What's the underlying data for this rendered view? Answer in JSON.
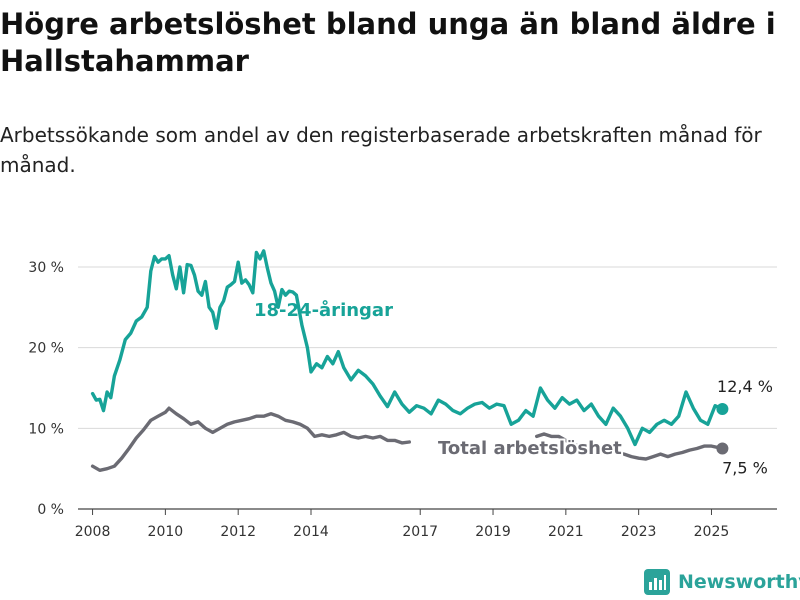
{
  "title": "Högre arbetslöshet bland unga än bland äldre i Hallstahammar",
  "subtitle": "Arbetssökande som andel av den registerbaserade arbetskraften månad för månad.",
  "brand": {
    "name": "Newsworthy",
    "icon": "bar-chart-logo-icon",
    "color": "#2ba39a"
  },
  "colors": {
    "youth": "#17a398",
    "total": "#6b6b73",
    "grid": "#d9d9d9",
    "axis": "#444444"
  },
  "chart_data": {
    "type": "line",
    "title": "Högre arbetslöshet bland unga än bland äldre i Hallstahammar",
    "subtitle": "Arbetssökande som andel av den registerbaserade arbetskraften månad för månad.",
    "xlabel": "",
    "ylabel": "",
    "xlim": [
      2007.6,
      2026.8
    ],
    "ylim": [
      0,
      30
    ],
    "grid": true,
    "legend": "none",
    "x_ticks": [
      {
        "value": 2008,
        "label": "2008"
      },
      {
        "value": 2010,
        "label": "2010"
      },
      {
        "value": 2012,
        "label": "2012"
      },
      {
        "value": 2014,
        "label": "2014"
      },
      {
        "value": 2017,
        "label": "2017"
      },
      {
        "value": 2019,
        "label": "2019"
      },
      {
        "value": 2021,
        "label": "2021"
      },
      {
        "value": 2023,
        "label": "2023"
      },
      {
        "value": 2025,
        "label": "2025"
      }
    ],
    "y_ticks": [
      {
        "value": 0,
        "label": "0 %"
      },
      {
        "value": 10,
        "label": "10 %"
      },
      {
        "value": 20,
        "label": "20 %"
      },
      {
        "value": 30,
        "label": "30 %"
      }
    ],
    "series": [
      {
        "name": "18-24-åringar",
        "end_label": "12,4 %",
        "points": [
          [
            2008.0,
            14.3
          ],
          [
            2008.1,
            13.5
          ],
          [
            2008.2,
            13.6
          ],
          [
            2008.3,
            12.2
          ],
          [
            2008.4,
            14.5
          ],
          [
            2008.5,
            13.8
          ],
          [
            2008.6,
            16.5
          ],
          [
            2008.75,
            18.5
          ],
          [
            2008.9,
            21.0
          ],
          [
            2009.05,
            21.8
          ],
          [
            2009.2,
            23.3
          ],
          [
            2009.35,
            23.8
          ],
          [
            2009.5,
            25.0
          ],
          [
            2009.6,
            29.5
          ],
          [
            2009.7,
            31.3
          ],
          [
            2009.8,
            30.6
          ],
          [
            2009.9,
            31.0
          ],
          [
            2010.0,
            31.0
          ],
          [
            2010.1,
            31.4
          ],
          [
            2010.2,
            29.0
          ],
          [
            2010.3,
            27.3
          ],
          [
            2010.4,
            30.0
          ],
          [
            2010.5,
            26.8
          ],
          [
            2010.6,
            30.3
          ],
          [
            2010.7,
            30.2
          ],
          [
            2010.8,
            29.0
          ],
          [
            2010.9,
            27.0
          ],
          [
            2011.0,
            26.5
          ],
          [
            2011.1,
            28.2
          ],
          [
            2011.2,
            25.0
          ],
          [
            2011.3,
            24.4
          ],
          [
            2011.4,
            22.4
          ],
          [
            2011.5,
            25.0
          ],
          [
            2011.6,
            25.8
          ],
          [
            2011.7,
            27.5
          ],
          [
            2011.8,
            27.8
          ],
          [
            2011.9,
            28.2
          ],
          [
            2012.0,
            30.6
          ],
          [
            2012.1,
            28.0
          ],
          [
            2012.2,
            28.4
          ],
          [
            2012.3,
            27.8
          ],
          [
            2012.4,
            26.8
          ],
          [
            2012.5,
            31.8
          ],
          [
            2012.6,
            31.0
          ],
          [
            2012.7,
            32.0
          ],
          [
            2012.8,
            29.9
          ],
          [
            2012.9,
            28.0
          ],
          [
            2013.0,
            27.0
          ],
          [
            2013.1,
            25.0
          ],
          [
            2013.2,
            27.2
          ],
          [
            2013.3,
            26.5
          ],
          [
            2013.4,
            27.0
          ],
          [
            2013.5,
            26.9
          ],
          [
            2013.6,
            26.5
          ],
          [
            2013.75,
            22.8
          ],
          [
            2013.9,
            20.0
          ],
          [
            2014.0,
            17.0
          ],
          [
            2014.15,
            18.0
          ],
          [
            2014.3,
            17.5
          ],
          [
            2014.45,
            18.9
          ],
          [
            2014.6,
            18.0
          ],
          [
            2014.75,
            19.5
          ],
          [
            2014.9,
            17.5
          ],
          [
            2015.1,
            16.0
          ],
          [
            2015.3,
            17.2
          ],
          [
            2015.5,
            16.5
          ],
          [
            2015.7,
            15.5
          ],
          [
            2015.9,
            14.0
          ],
          [
            2016.1,
            12.7
          ],
          [
            2016.3,
            14.5
          ],
          [
            2016.5,
            13.0
          ],
          [
            2016.7,
            12.0
          ],
          [
            2016.9,
            12.8
          ],
          [
            2017.1,
            12.5
          ],
          [
            2017.3,
            11.8
          ],
          [
            2017.5,
            13.5
          ],
          [
            2017.7,
            13.0
          ],
          [
            2017.9,
            12.2
          ],
          [
            2018.1,
            11.8
          ],
          [
            2018.3,
            12.5
          ],
          [
            2018.5,
            13.0
          ],
          [
            2018.7,
            13.2
          ],
          [
            2018.9,
            12.5
          ],
          [
            2019.1,
            13.0
          ],
          [
            2019.3,
            12.8
          ],
          [
            2019.5,
            10.5
          ],
          [
            2019.7,
            11.0
          ],
          [
            2019.9,
            12.2
          ],
          [
            2020.1,
            11.5
          ],
          [
            2020.3,
            15.0
          ],
          [
            2020.5,
            13.5
          ],
          [
            2020.7,
            12.5
          ],
          [
            2020.9,
            13.8
          ],
          [
            2021.1,
            13.0
          ],
          [
            2021.3,
            13.5
          ],
          [
            2021.5,
            12.2
          ],
          [
            2021.7,
            13.0
          ],
          [
            2021.9,
            11.5
          ],
          [
            2022.1,
            10.5
          ],
          [
            2022.3,
            12.5
          ],
          [
            2022.5,
            11.5
          ],
          [
            2022.7,
            10.0
          ],
          [
            2022.9,
            8.0
          ],
          [
            2023.1,
            10.0
          ],
          [
            2023.3,
            9.5
          ],
          [
            2023.5,
            10.5
          ],
          [
            2023.7,
            11.0
          ],
          [
            2023.9,
            10.5
          ],
          [
            2024.1,
            11.5
          ],
          [
            2024.3,
            14.5
          ],
          [
            2024.5,
            12.5
          ],
          [
            2024.7,
            11.0
          ],
          [
            2024.9,
            10.5
          ],
          [
            2025.1,
            12.8
          ],
          [
            2025.3,
            12.4
          ]
        ]
      },
      {
        "name": "Total arbetslöshet",
        "end_label": "7,5 %",
        "points": [
          [
            2008.0,
            5.3
          ],
          [
            2008.2,
            4.8
          ],
          [
            2008.4,
            5.0
          ],
          [
            2008.6,
            5.3
          ],
          [
            2008.8,
            6.3
          ],
          [
            2009.0,
            7.5
          ],
          [
            2009.2,
            8.8
          ],
          [
            2009.4,
            9.8
          ],
          [
            2009.6,
            11.0
          ],
          [
            2009.8,
            11.5
          ],
          [
            2010.0,
            12.0
          ],
          [
            2010.1,
            12.5
          ],
          [
            2010.3,
            11.8
          ],
          [
            2010.5,
            11.2
          ],
          [
            2010.7,
            10.5
          ],
          [
            2010.9,
            10.8
          ],
          [
            2011.1,
            10.0
          ],
          [
            2011.3,
            9.5
          ],
          [
            2011.5,
            10.0
          ],
          [
            2011.7,
            10.5
          ],
          [
            2011.9,
            10.8
          ],
          [
            2012.1,
            11.0
          ],
          [
            2012.3,
            11.2
          ],
          [
            2012.5,
            11.5
          ],
          [
            2012.7,
            11.5
          ],
          [
            2012.9,
            11.8
          ],
          [
            2013.1,
            11.5
          ],
          [
            2013.3,
            11.0
          ],
          [
            2013.5,
            10.8
          ],
          [
            2013.7,
            10.5
          ],
          [
            2013.9,
            10.0
          ],
          [
            2014.1,
            9.0
          ],
          [
            2014.3,
            9.2
          ],
          [
            2014.5,
            9.0
          ],
          [
            2014.7,
            9.2
          ],
          [
            2014.9,
            9.5
          ],
          [
            2015.1,
            9.0
          ],
          [
            2015.3,
            8.8
          ],
          [
            2015.5,
            9.0
          ],
          [
            2015.7,
            8.8
          ],
          [
            2015.9,
            9.0
          ],
          [
            2016.1,
            8.5
          ],
          [
            2016.3,
            8.5
          ],
          [
            2016.5,
            8.2
          ],
          [
            2016.7,
            8.3
          ]
        ],
        "points_late": [
          [
            2020.2,
            9.0
          ],
          [
            2020.4,
            9.3
          ],
          [
            2020.6,
            9.0
          ],
          [
            2020.8,
            9.0
          ],
          [
            2021.0,
            8.5
          ],
          [
            2021.2,
            8.0
          ],
          [
            2021.4,
            7.8
          ],
          [
            2021.6,
            7.5
          ],
          [
            2021.8,
            7.3
          ],
          [
            2022.0,
            7.0
          ],
          [
            2022.2,
            7.2
          ],
          [
            2022.4,
            7.0
          ],
          [
            2022.6,
            6.8
          ],
          [
            2022.8,
            6.5
          ],
          [
            2023.0,
            6.3
          ],
          [
            2023.2,
            6.2
          ],
          [
            2023.4,
            6.5
          ],
          [
            2023.6,
            6.8
          ],
          [
            2023.8,
            6.5
          ],
          [
            2024.0,
            6.8
          ],
          [
            2024.2,
            7.0
          ],
          [
            2024.4,
            7.3
          ],
          [
            2024.6,
            7.5
          ],
          [
            2024.8,
            7.8
          ],
          [
            2025.0,
            7.8
          ],
          [
            2025.2,
            7.6
          ],
          [
            2025.3,
            7.5
          ]
        ]
      }
    ],
    "annotations": [
      {
        "text": "18-24-åringar",
        "series": 0
      },
      {
        "text": "Total arbetslöshet",
        "series": 1
      }
    ]
  }
}
